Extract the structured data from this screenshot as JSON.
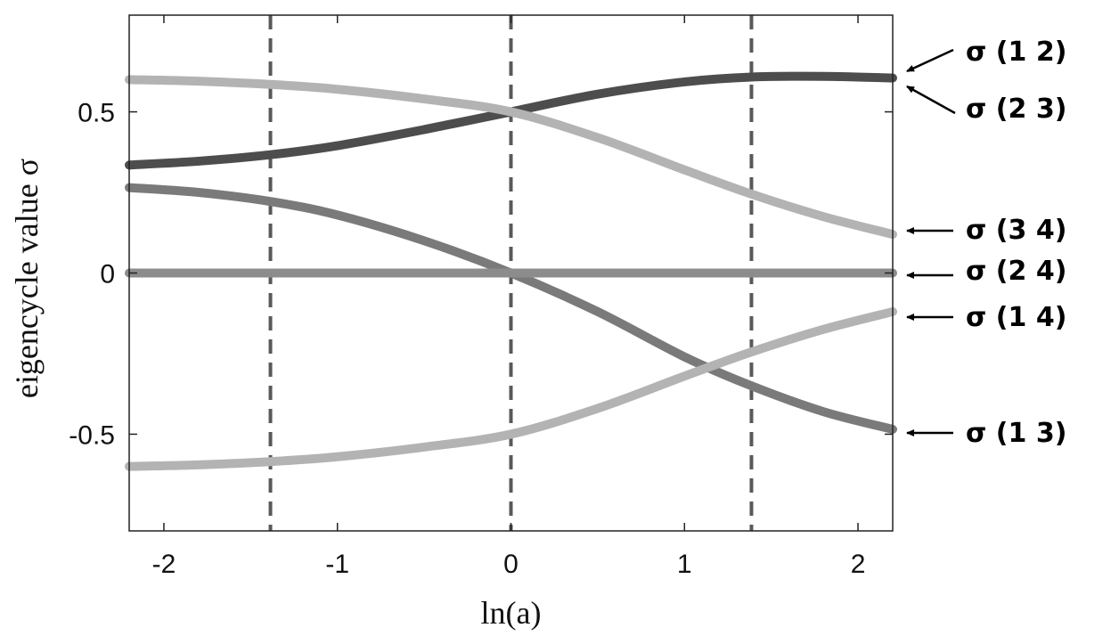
{
  "chart_data": {
    "type": "line",
    "xlabel": "ln(a)",
    "ylabel": "eigencycle value σ",
    "xlim": [
      -2.2,
      2.2
    ],
    "ylim": [
      -0.8,
      0.8
    ],
    "grid": false,
    "x_ticks": [
      -2,
      -1,
      0,
      1,
      2
    ],
    "x_tick_labels": [
      "-2",
      "-1",
      "0",
      "1",
      "2"
    ],
    "y_ticks": [
      -0.5,
      0,
      0.5
    ],
    "y_tick_labels": [
      "-0.5",
      "0",
      "0.5"
    ],
    "vlines": [
      -1.386,
      0,
      1.386
    ],
    "vline_style": "dashed",
    "colors": {
      "dark": "#4d4d4d",
      "medium": "#7a7a7a",
      "gray": "#8c8c8c",
      "light": "#b3b3b3",
      "vline": "#595959"
    },
    "series": [
      {
        "color": "#4d4d4d",
        "x": [
          -2.2,
          -1.8,
          -1.386,
          -1.0,
          -0.5,
          0.0,
          0.5,
          1.0,
          1.386,
          1.8,
          2.2
        ],
        "y": [
          0.335,
          0.347,
          0.367,
          0.395,
          0.445,
          0.5,
          0.555,
          0.593,
          0.608,
          0.61,
          0.605
        ]
      },
      {
        "color": "#b3b3b3",
        "x": [
          -2.2,
          -1.8,
          -1.386,
          -1.0,
          -0.5,
          0.0,
          0.5,
          1.0,
          1.386,
          1.8,
          2.2
        ],
        "y": [
          0.6,
          0.595,
          0.585,
          0.57,
          0.54,
          0.5,
          0.42,
          0.32,
          0.245,
          0.175,
          0.12
        ]
      },
      {
        "color": "#7a7a7a",
        "x": [
          -2.2,
          -1.8,
          -1.386,
          -1.0,
          -0.5,
          0.0,
          0.5,
          1.0,
          1.386,
          1.8,
          2.2
        ],
        "y": [
          0.265,
          0.25,
          0.222,
          0.18,
          0.1,
          0.0,
          -0.12,
          -0.26,
          -0.35,
          -0.43,
          -0.485
        ]
      },
      {
        "color": "#8c8c8c",
        "x": [
          -2.2,
          2.2
        ],
        "y": [
          0.0,
          0.0
        ]
      },
      {
        "color": "#b3b3b3",
        "x": [
          -2.2,
          -1.8,
          -1.386,
          -1.0,
          -0.5,
          0.0,
          0.5,
          1.0,
          1.386,
          1.8,
          2.2
        ],
        "y": [
          -0.6,
          -0.595,
          -0.585,
          -0.57,
          -0.54,
          -0.5,
          -0.42,
          -0.32,
          -0.245,
          -0.175,
          -0.12
        ]
      }
    ],
    "annotations": [
      {
        "text": "σ  (1 2)",
        "y": 0.61,
        "arrow": "diagonal-up"
      },
      {
        "text": "σ  (2 3)",
        "y": 0.58,
        "arrow": "diagonal-down"
      },
      {
        "text": "σ  (3 4)",
        "y": 0.135,
        "arrow": "horizontal"
      },
      {
        "text": "σ  (2 4)",
        "y": 0.0,
        "arrow": "horizontal"
      },
      {
        "text": "σ  (1 4)",
        "y": -0.135,
        "arrow": "horizontal"
      },
      {
        "text": "σ  (1 3)",
        "y": -0.49,
        "arrow": "horizontal"
      }
    ]
  }
}
